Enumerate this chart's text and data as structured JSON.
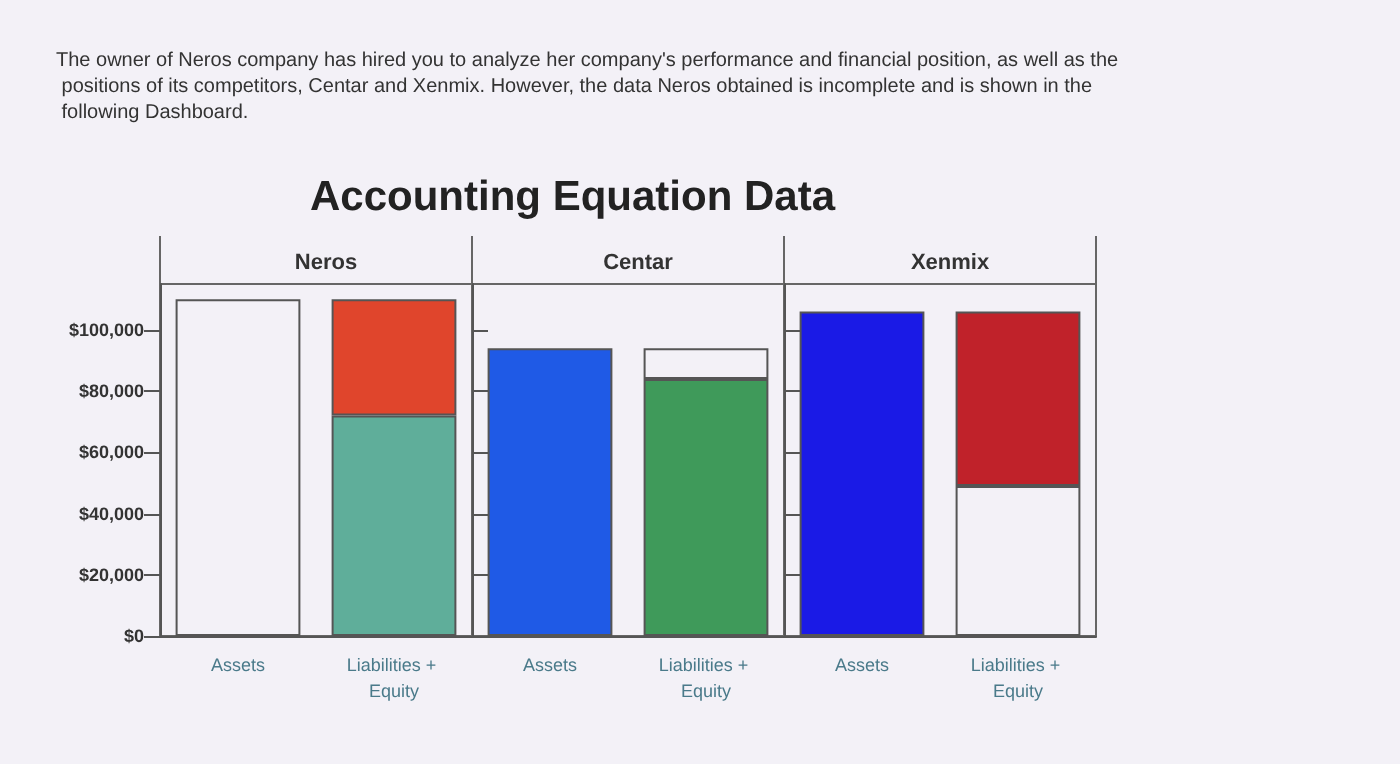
{
  "chart_data": [
    {
      "type": "bar",
      "title": "Neros",
      "annotations": [
        "The owner of Neros company has hired you to analyze her company's performance and financial position, as well as the positions of its competitors, Centar and Xenmix. However, the data Neros obtained is incomplete and is shown in the following Dashboard.",
        "Accounting Equation Data"
      ],
      "categories": [
        "Assets",
        "Liabilities + Equity"
      ],
      "stacked": true,
      "series": [
        {
          "values": [
            110000,
            72000
          ],
          "colors": [
            null,
            "#5fae9a"
          ]
        },
        {
          "values": [
            null,
            38000
          ],
          "colors": [
            null,
            "#e0452c"
          ]
        }
      ],
      "ylim": [
        0,
        115000
      ],
      "yticks": [
        {
          "value": 0,
          "label": "$0"
        },
        {
          "value": 20000,
          "label": "$20,000"
        },
        {
          "value": 40000,
          "label": "$40,000"
        },
        {
          "value": 60000,
          "label": "$60,000"
        },
        {
          "value": 80000,
          "label": "$80,000"
        },
        {
          "value": 100000,
          "label": "$100,000"
        }
      ],
      "grid": false
    },
    {
      "type": "bar",
      "title": "Centar",
      "categories": [
        "Assets",
        "Liabilities + Equity"
      ],
      "stacked": true,
      "series": [
        {
          "values": [
            94000,
            84000
          ],
          "colors": [
            "#1f5ae6",
            "#3f9a5a"
          ]
        },
        {
          "values": [
            null,
            10000
          ],
          "colors": [
            null,
            null
          ]
        }
      ],
      "ylim": [
        0,
        115000
      ],
      "yticks": [
        {
          "value": 0,
          "label": null
        },
        {
          "value": 20000,
          "label": null
        },
        {
          "value": 40000,
          "label": null
        },
        {
          "value": 60000,
          "label": null
        },
        {
          "value": 80000,
          "label": null
        },
        {
          "value": 100000,
          "label": null
        }
      ],
      "tick_labels": "x",
      "grid": false
    },
    {
      "type": "bar",
      "title": "Xenmix",
      "categories": [
        "Assets",
        "Liabilities + Equity"
      ],
      "stacked": true,
      "series": [
        {
          "values": [
            106000,
            49000
          ],
          "colors": [
            "#1a1ae6",
            null
          ]
        },
        {
          "values": [
            null,
            57000
          ],
          "colors": [
            null,
            "#c0222a"
          ]
        }
      ],
      "ylim": [
        0,
        115000
      ],
      "yticks": [
        {
          "value": 0,
          "label": null
        },
        {
          "value": 20000,
          "label": null
        },
        {
          "value": 40000,
          "label": null
        },
        {
          "value": 60000,
          "label": null
        },
        {
          "value": 80000,
          "label": null
        },
        {
          "value": 100000,
          "label": null
        }
      ],
      "tick_labels": "x",
      "grid": false
    }
  ]
}
